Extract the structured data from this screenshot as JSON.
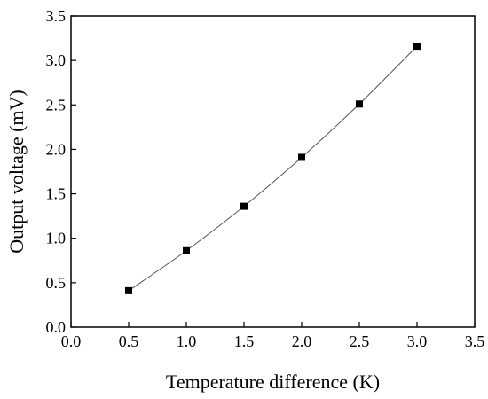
{
  "chart_data": {
    "type": "line",
    "title": "",
    "xlabel": "Temperature difference (K)",
    "ylabel": "Output voltage (mV)",
    "xlim": [
      0.0,
      3.5
    ],
    "ylim": [
      0.0,
      3.5
    ],
    "xticks": [
      "0.0",
      "0.5",
      "1.0",
      "1.5",
      "2.0",
      "2.5",
      "3.0",
      "3.5"
    ],
    "yticks": [
      "0.0",
      "0.5",
      "1.0",
      "1.5",
      "2.0",
      "2.5",
      "3.0",
      "3.5"
    ],
    "grid": false,
    "legend": "none",
    "series": [
      {
        "marker": "square",
        "line_style": "smooth",
        "color": "#000000",
        "line_color": "#555555",
        "x": [
          0.5,
          1.0,
          1.5,
          2.0,
          2.5,
          3.0
        ],
        "y": [
          0.41,
          0.86,
          1.36,
          1.91,
          2.51,
          3.16
        ]
      }
    ]
  }
}
